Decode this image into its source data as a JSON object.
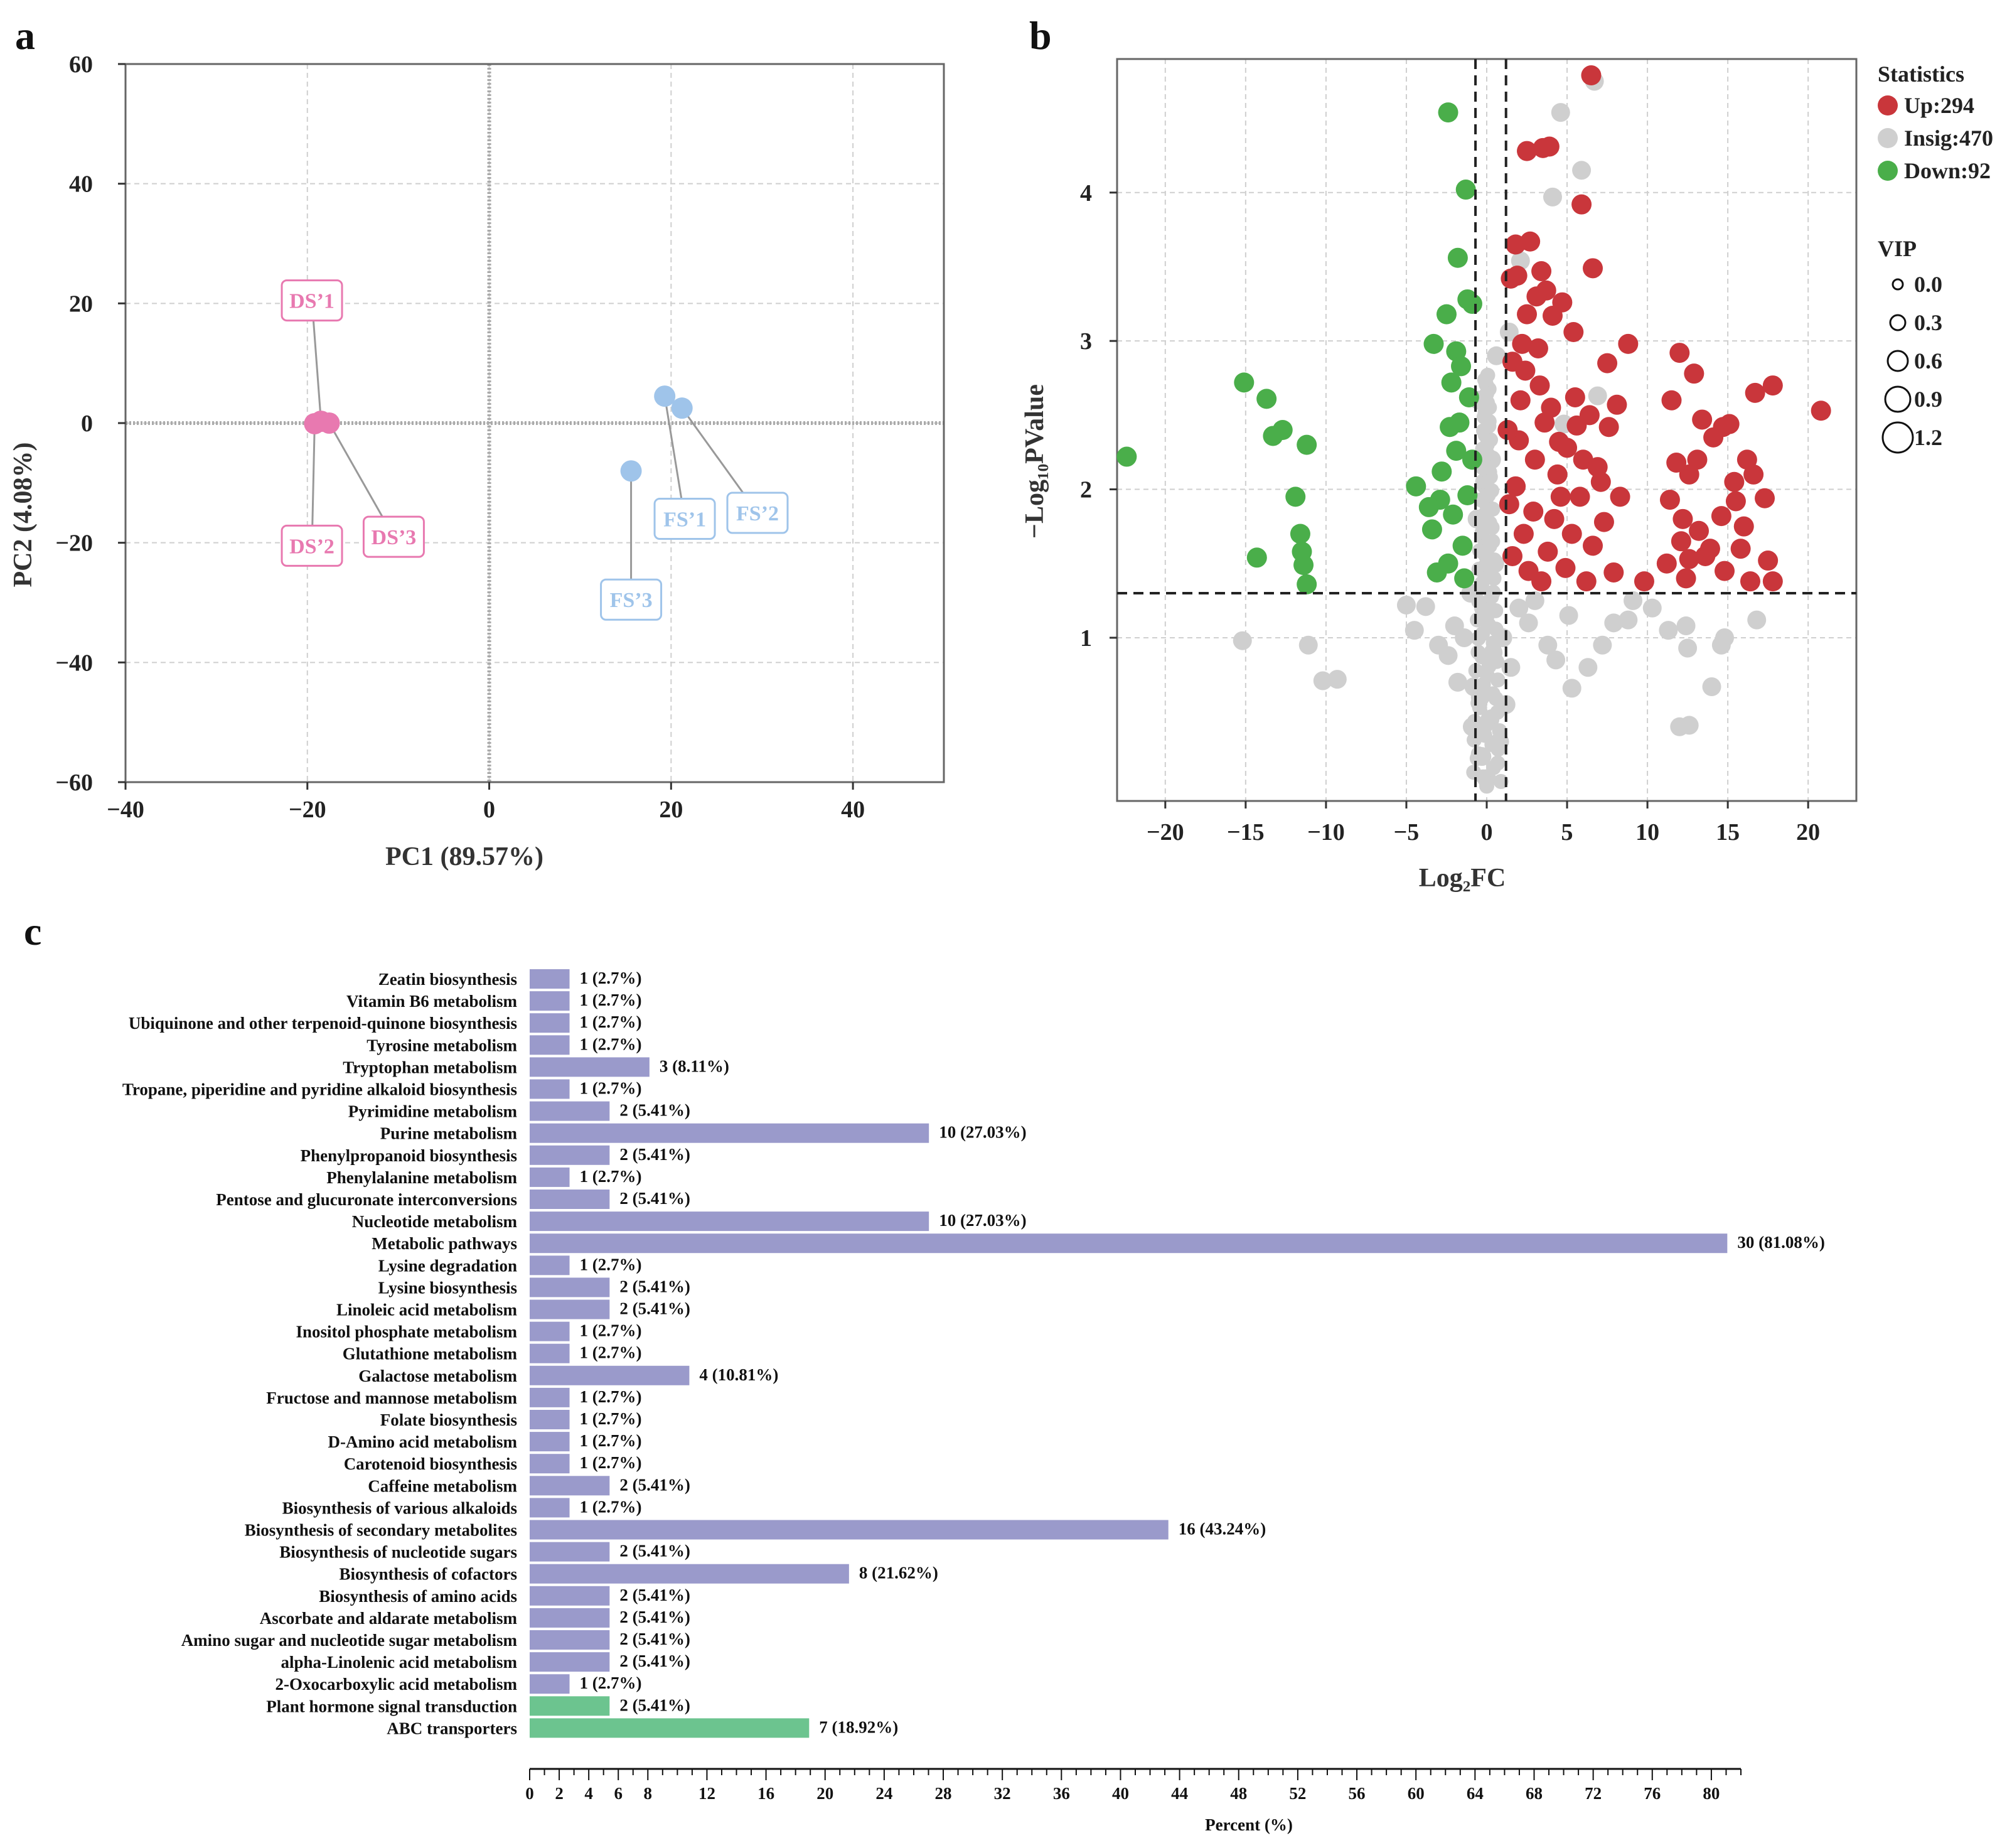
{
  "panels": {
    "a": "a",
    "b": "b",
    "c": "c"
  },
  "chart_data": [
    {
      "type": "scatter",
      "name": "PCA",
      "xlabel": "PC1 (89.57%)",
      "ylabel": "PC2 (4.08%)",
      "xlim": [
        -40,
        50
      ],
      "ylim": [
        -60,
        60
      ],
      "xticks": [
        -40,
        -20,
        0,
        20,
        40
      ],
      "yticks": [
        -60,
        -40,
        -20,
        0,
        20,
        40,
        60
      ],
      "colors": {
        "DS": "#e879b0",
        "FS": "#9fc4ea"
      },
      "points": [
        {
          "label": "DS’1",
          "group": "DS",
          "x": -18.5,
          "y": 0.3,
          "lx": -19.5,
          "ly": 20.5
        },
        {
          "label": "DS’2",
          "group": "DS",
          "x": -19.2,
          "y": -0.1,
          "lx": -19.5,
          "ly": -20.5
        },
        {
          "label": "DS’3",
          "group": "DS",
          "x": -17.6,
          "y": 0.0,
          "lx": -10.5,
          "ly": -19
        },
        {
          "label": "FS’1",
          "group": "FS",
          "x": 19.3,
          "y": 4.5,
          "lx": 21.5,
          "ly": -16
        },
        {
          "label": "FS’2",
          "group": "FS",
          "x": 21.2,
          "y": 2.5,
          "lx": 29.5,
          "ly": -15
        },
        {
          "label": "FS’3",
          "group": "FS",
          "x": 15.6,
          "y": -8.0,
          "lx": 15.6,
          "ly": -29.5
        }
      ]
    },
    {
      "type": "scatter",
      "name": "Volcano",
      "xlabel": "Log₂FC",
      "ylabel": "−Log₁₀PValue",
      "xlim": [
        -23,
        23
      ],
      "ylim": [
        -0.1,
        4.9
      ],
      "xticks": [
        -20,
        -15,
        -10,
        -5,
        0,
        5,
        10,
        15,
        20
      ],
      "yticks": [
        1,
        2,
        3,
        4
      ],
      "thresholds": {
        "fc": [
          -0.7,
          1.2
        ],
        "p": 1.3
      },
      "legend_title": "Statistics",
      "legend": [
        {
          "label": "Up:294",
          "color": "#c9363b"
        },
        {
          "label": "Insig:470",
          "color": "#cfcfcf"
        },
        {
          "label": "Down:92",
          "color": "#4aae4a"
        }
      ],
      "vip_title": "VIP",
      "vip": [
        "0.0",
        "0.3",
        "0.6",
        "0.9",
        "1.2"
      ],
      "counts": {
        "up": 294,
        "insig": 470,
        "down": 92
      },
      "down_points": [
        [
          -22.4,
          2.22
        ],
        [
          -15.1,
          2.72
        ],
        [
          -13.7,
          2.61
        ],
        [
          -13.3,
          2.36
        ],
        [
          -12.7,
          2.4
        ],
        [
          -11.9,
          1.95
        ],
        [
          -11.6,
          1.7
        ],
        [
          -11.2,
          2.3
        ],
        [
          -11.4,
          1.49
        ],
        [
          -11.2,
          1.36
        ],
        [
          -11.5,
          1.58
        ],
        [
          -14.3,
          1.54
        ],
        [
          -2.4,
          4.54
        ],
        [
          -1.3,
          4.02
        ],
        [
          -1.8,
          3.56
        ],
        [
          -1.2,
          3.28
        ],
        [
          -0.9,
          3.25
        ],
        [
          -2.5,
          3.18
        ],
        [
          -3.3,
          2.98
        ],
        [
          -1.9,
          2.93
        ],
        [
          -1.6,
          2.83
        ],
        [
          -2.3,
          2.42
        ],
        [
          -1.9,
          2.26
        ],
        [
          -4.4,
          2.02
        ],
        [
          -2.9,
          1.93
        ],
        [
          -3.4,
          1.73
        ],
        [
          -2.1,
          1.83
        ],
        [
          -1.5,
          1.62
        ],
        [
          -3.1,
          1.44
        ],
        [
          -2.4,
          1.5
        ],
        [
          -1.4,
          1.4
        ],
        [
          -1.2,
          1.96
        ],
        [
          -0.9,
          2.2
        ],
        [
          -2.8,
          2.12
        ],
        [
          -3.6,
          1.88
        ],
        [
          -1.1,
          2.62
        ],
        [
          -2.2,
          2.72
        ],
        [
          -1.7,
          2.45
        ]
      ],
      "up_points": [
        [
          6.5,
          4.79
        ],
        [
          2.5,
          4.28
        ],
        [
          3.5,
          4.3
        ],
        [
          3.9,
          4.31
        ],
        [
          5.9,
          3.92
        ],
        [
          1.8,
          3.65
        ],
        [
          2.7,
          3.67
        ],
        [
          6.6,
          3.49
        ],
        [
          1.5,
          3.42
        ],
        [
          1.9,
          3.44
        ],
        [
          3.4,
          3.47
        ],
        [
          3.7,
          3.34
        ],
        [
          3.1,
          3.3
        ],
        [
          2.5,
          3.18
        ],
        [
          4.1,
          3.17
        ],
        [
          4.7,
          3.26
        ],
        [
          5.4,
          3.06
        ],
        [
          2.2,
          2.98
        ],
        [
          3.2,
          2.95
        ],
        [
          7.5,
          2.85
        ],
        [
          8.8,
          2.98
        ],
        [
          1.6,
          2.86
        ],
        [
          2.4,
          2.8
        ],
        [
          3.3,
          2.7
        ],
        [
          4.0,
          2.55
        ],
        [
          5.5,
          2.62
        ],
        [
          6.4,
          2.5
        ],
        [
          7.6,
          2.42
        ],
        [
          8.1,
          2.57
        ],
        [
          2.0,
          2.33
        ],
        [
          3.0,
          2.2
        ],
        [
          4.5,
          2.32
        ],
        [
          6.0,
          2.2
        ],
        [
          7.1,
          2.05
        ],
        [
          8.3,
          1.95
        ],
        [
          1.8,
          2.02
        ],
        [
          2.9,
          1.85
        ],
        [
          4.2,
          1.8
        ],
        [
          5.3,
          1.7
        ],
        [
          6.6,
          1.62
        ],
        [
          1.6,
          1.55
        ],
        [
          2.6,
          1.45
        ],
        [
          3.8,
          1.58
        ],
        [
          4.9,
          1.47
        ],
        [
          6.2,
          1.38
        ],
        [
          7.9,
          1.44
        ],
        [
          9.8,
          1.38
        ],
        [
          11.2,
          1.5
        ],
        [
          12.4,
          1.4
        ],
        [
          13.6,
          1.55
        ],
        [
          14.8,
          1.45
        ],
        [
          16.4,
          1.38
        ],
        [
          17.5,
          1.52
        ],
        [
          17.8,
          1.38
        ],
        [
          11.5,
          2.6
        ],
        [
          12.0,
          2.92
        ],
        [
          12.9,
          2.78
        ],
        [
          13.4,
          2.47
        ],
        [
          14.7,
          2.42
        ],
        [
          15.1,
          2.44
        ],
        [
          16.7,
          2.65
        ],
        [
          17.8,
          2.7
        ],
        [
          20.8,
          2.53
        ],
        [
          11.8,
          2.18
        ],
        [
          12.6,
          2.1
        ],
        [
          13.1,
          2.2
        ],
        [
          14.1,
          2.35
        ],
        [
          15.4,
          2.05
        ],
        [
          16.6,
          2.1
        ],
        [
          17.3,
          1.94
        ],
        [
          11.4,
          1.93
        ],
        [
          12.2,
          1.8
        ],
        [
          13.2,
          1.72
        ],
        [
          14.6,
          1.82
        ],
        [
          15.8,
          1.6
        ],
        [
          12.1,
          1.65
        ],
        [
          16.0,
          1.75
        ],
        [
          1.3,
          2.4
        ],
        [
          2.1,
          2.6
        ],
        [
          3.6,
          2.45
        ],
        [
          4.4,
          2.1
        ],
        [
          5.0,
          2.28
        ],
        [
          5.8,
          1.95
        ],
        [
          7.3,
          1.78
        ],
        [
          2.3,
          1.7
        ],
        [
          3.4,
          1.38
        ],
        [
          4.6,
          1.95
        ],
        [
          6.9,
          2.15
        ],
        [
          1.4,
          1.9
        ],
        [
          5.6,
          2.43
        ],
        [
          12.6,
          1.53
        ],
        [
          13.9,
          1.6
        ],
        [
          15.5,
          1.92
        ],
        [
          16.2,
          2.2
        ]
      ],
      "insig_points": [
        [
          6.7,
          4.75
        ],
        [
          4.6,
          4.54
        ],
        [
          5.9,
          4.15
        ],
        [
          4.1,
          3.97
        ],
        [
          2.1,
          3.54
        ],
        [
          1.4,
          3.06
        ],
        [
          6.9,
          2.63
        ],
        [
          4.8,
          2.44
        ],
        [
          8.8,
          1.12
        ],
        [
          5.3,
          0.66
        ],
        [
          -15.2,
          0.98
        ],
        [
          -11.1,
          0.95
        ],
        [
          -10.2,
          0.71
        ],
        [
          -9.3,
          0.72
        ],
        [
          -2.4,
          0.88
        ],
        [
          -0.8,
          0.67
        ],
        [
          -3.8,
          1.21
        ],
        [
          -4.5,
          1.05
        ],
        [
          -2.0,
          1.08
        ],
        [
          2.6,
          1.1
        ],
        [
          3.8,
          0.95
        ],
        [
          6.3,
          0.8
        ],
        [
          7.9,
          1.1
        ],
        [
          10.3,
          1.2
        ],
        [
          11.3,
          1.05
        ],
        [
          12.4,
          1.08
        ],
        [
          14.6,
          0.95
        ],
        [
          16.8,
          1.12
        ],
        [
          12.0,
          0.4
        ],
        [
          12.6,
          0.41
        ],
        [
          14.0,
          0.67
        ],
        [
          12.5,
          0.93
        ],
        [
          14.8,
          1.0
        ],
        [
          9.1,
          1.25
        ],
        [
          -0.3,
          0.2
        ],
        [
          0.0,
          0.05
        ],
        [
          0.2,
          0.45
        ],
        [
          -0.4,
          0.6
        ],
        [
          0.4,
          0.9
        ],
        [
          -0.2,
          1.2
        ],
        [
          0.5,
          1.5
        ],
        [
          -0.6,
          1.8
        ],
        [
          0.3,
          2.2
        ],
        [
          -0.5,
          2.6
        ],
        [
          0.6,
          2.9
        ],
        [
          1.0,
          1.0
        ],
        [
          -1.0,
          1.3
        ],
        [
          1.5,
          0.8
        ],
        [
          -1.4,
          1.0
        ],
        [
          2.0,
          1.2
        ],
        [
          -1.8,
          0.7
        ],
        [
          0.8,
          0.3
        ],
        [
          -0.9,
          0.4
        ],
        [
          1.2,
          0.55
        ],
        [
          3.0,
          1.25
        ],
        [
          4.3,
          0.85
        ],
        [
          5.1,
          1.15
        ],
        [
          7.2,
          0.95
        ],
        [
          -3.0,
          0.95
        ],
        [
          -5.0,
          1.22
        ]
      ]
    },
    {
      "type": "bar",
      "name": "KEGG enrichment",
      "orientation": "horizontal",
      "xlabel": "Percent (%)",
      "xlim": [
        0,
        82
      ],
      "xticks": [
        0,
        2,
        4,
        6,
        8,
        12,
        16,
        20,
        24,
        28,
        32,
        36,
        40,
        44,
        48,
        52,
        56,
        60,
        64,
        68,
        72,
        76,
        80
      ],
      "colors": {
        "default": "#9a9acb",
        "highlight": "#6cc48f"
      },
      "categories": [
        "Zeatin biosynthesis",
        "Vitamin B6 metabolism",
        "Ubiquinone and other terpenoid-quinone biosynthesis",
        "Tyrosine metabolism",
        "Tryptophan metabolism",
        "Tropane, piperidine and pyridine alkaloid biosynthesis",
        "Pyrimidine metabolism",
        "Purine metabolism",
        "Phenylpropanoid biosynthesis",
        "Phenylalanine metabolism",
        "Pentose and glucuronate interconversions",
        "Nucleotide metabolism",
        "Metabolic pathways",
        "Lysine degradation",
        "Lysine biosynthesis",
        "Linoleic acid metabolism",
        "Inositol phosphate metabolism",
        "Glutathione metabolism",
        "Galactose metabolism",
        "Fructose and mannose metabolism",
        "Folate biosynthesis",
        "D-Amino acid metabolism",
        "Carotenoid biosynthesis",
        "Caffeine metabolism",
        "Biosynthesis of various alkaloids",
        "Biosynthesis of secondary metabolites",
        "Biosynthesis of nucleotide sugars",
        "Biosynthesis of cofactors",
        "Biosynthesis of amino acids",
        "Ascorbate and aldarate metabolism",
        "Amino sugar and nucleotide sugar metabolism",
        "alpha-Linolenic acid metabolism",
        "2-Oxocarboxylic acid metabolism",
        "Plant hormone signal transduction",
        "ABC transporters"
      ],
      "values": [
        2.7,
        2.7,
        2.7,
        2.7,
        8.11,
        2.7,
        5.41,
        27.03,
        5.41,
        2.7,
        5.41,
        27.03,
        81.08,
        2.7,
        5.41,
        5.41,
        2.7,
        2.7,
        10.81,
        2.7,
        2.7,
        2.7,
        2.7,
        5.41,
        2.7,
        43.24,
        5.41,
        21.62,
        5.41,
        5.41,
        5.41,
        5.41,
        2.7,
        5.41,
        18.92
      ],
      "labels": [
        "1 (2.7%)",
        "1 (2.7%)",
        "1 (2.7%)",
        "1 (2.7%)",
        "3 (8.11%)",
        "1 (2.7%)",
        "2 (5.41%)",
        "10 (27.03%)",
        "2 (5.41%)",
        "1 (2.7%)",
        "2 (5.41%)",
        "10 (27.03%)",
        "30 (81.08%)",
        "1 (2.7%)",
        "2 (5.41%)",
        "2 (5.41%)",
        "1 (2.7%)",
        "1 (2.7%)",
        "4 (10.81%)",
        "1 (2.7%)",
        "1 (2.7%)",
        "1 (2.7%)",
        "1 (2.7%)",
        "2 (5.41%)",
        "1 (2.7%)",
        "16 (43.24%)",
        "2 (5.41%)",
        "8 (21.62%)",
        "2 (5.41%)",
        "2 (5.41%)",
        "2 (5.41%)",
        "2 (5.41%)",
        "1 (2.7%)",
        "2 (5.41%)",
        "7 (18.92%)"
      ],
      "highlight": [
        "Plant hormone signal transduction",
        "ABC transporters"
      ]
    }
  ]
}
